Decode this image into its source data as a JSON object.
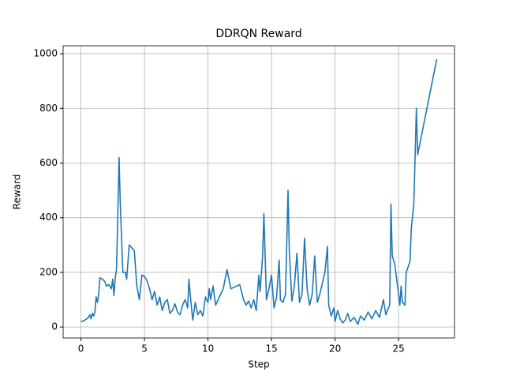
{
  "chart_data": {
    "type": "line",
    "title": "DDRQN Reward",
    "x_label": "Step",
    "y_label": "Reward",
    "color": "#1f77b4",
    "grid": true,
    "xlim": [
      -1.4,
      29.4
    ],
    "ylim": [
      -40,
      1029
    ],
    "xticks": [
      0,
      5,
      10,
      15,
      20,
      25
    ],
    "yticks": [
      0,
      200,
      400,
      600,
      800,
      1000
    ],
    "x": [
      0,
      0.2,
      0.4,
      0.6,
      0.7,
      0.8,
      0.9,
      1.0,
      1.1,
      1.2,
      1.3,
      1.4,
      1.5,
      1.7,
      1.9,
      2.0,
      2.2,
      2.4,
      2.5,
      2.6,
      2.7,
      2.8,
      2.9,
      3.0,
      3.1,
      3.3,
      3.5,
      3.6,
      3.8,
      4.0,
      4.2,
      4.4,
      4.6,
      4.8,
      5.0,
      5.2,
      5.4,
      5.6,
      5.8,
      6.0,
      6.2,
      6.4,
      6.6,
      6.8,
      7.0,
      7.2,
      7.4,
      7.6,
      7.8,
      8.0,
      8.2,
      8.4,
      8.5,
      8.6,
      8.8,
      9.0,
      9.2,
      9.4,
      9.6,
      9.8,
      10.0,
      10.1,
      10.2,
      10.4,
      10.6,
      10.8,
      11.0,
      11.2,
      11.5,
      11.8,
      12.5,
      12.8,
      13.0,
      13.2,
      13.4,
      13.6,
      13.8,
      14.0,
      14.1,
      14.3,
      14.4,
      14.6,
      14.8,
      15.0,
      15.2,
      15.4,
      15.6,
      15.7,
      15.9,
      16.1,
      16.3,
      16.4,
      16.6,
      16.8,
      17.0,
      17.2,
      17.4,
      17.6,
      17.8,
      18.0,
      18.2,
      18.4,
      18.6,
      18.8,
      19.0,
      19.2,
      19.4,
      19.5,
      19.7,
      19.9,
      20.0,
      20.2,
      20.4,
      20.6,
      20.8,
      21.0,
      21.2,
      21.5,
      21.8,
      22.0,
      22.3,
      22.6,
      22.9,
      23.2,
      23.5,
      23.8,
      24.0,
      24.2,
      24.3,
      24.4,
      24.5,
      24.7,
      25.0,
      25.1,
      25.2,
      25.3,
      25.5,
      25.6,
      25.9,
      26.0,
      26.2,
      26.4,
      26.5,
      28.0
    ],
    "values": [
      20,
      22,
      28,
      35,
      45,
      30,
      50,
      40,
      55,
      110,
      90,
      120,
      180,
      175,
      165,
      150,
      155,
      140,
      175,
      115,
      180,
      210,
      400,
      620,
      450,
      200,
      200,
      175,
      300,
      290,
      280,
      150,
      100,
      190,
      185,
      170,
      140,
      100,
      130,
      80,
      110,
      60,
      90,
      100,
      50,
      60,
      85,
      55,
      45,
      80,
      100,
      70,
      175,
      120,
      25,
      90,
      45,
      60,
      40,
      110,
      90,
      140,
      100,
      150,
      80,
      100,
      120,
      140,
      210,
      140,
      155,
      100,
      80,
      95,
      70,
      100,
      60,
      190,
      130,
      260,
      415,
      100,
      140,
      190,
      70,
      110,
      245,
      100,
      90,
      120,
      500,
      280,
      95,
      150,
      270,
      90,
      120,
      325,
      140,
      80,
      120,
      260,
      90,
      120,
      160,
      200,
      295,
      80,
      40,
      70,
      20,
      60,
      30,
      15,
      25,
      50,
      20,
      35,
      10,
      40,
      25,
      55,
      30,
      60,
      35,
      100,
      45,
      70,
      80,
      450,
      260,
      230,
      120,
      80,
      150,
      90,
      80,
      200,
      240,
      360,
      450,
      800,
      630,
      980
    ]
  }
}
